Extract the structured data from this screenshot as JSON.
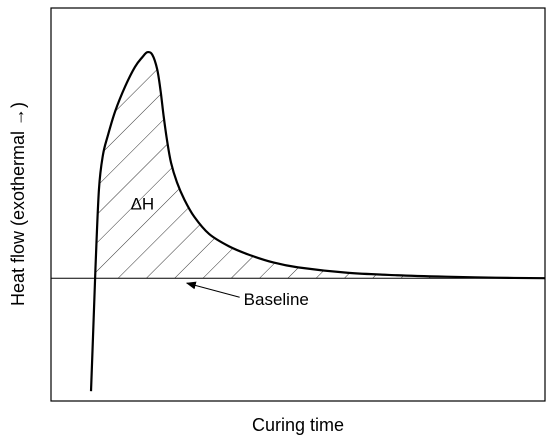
{
  "chart_data": {
    "type": "line",
    "title": "",
    "xlabel": "Curing time",
    "ylabel": "Heat flow (exothermal →)",
    "xlim": [
      0,
      100
    ],
    "ylim": [
      -25,
      55
    ],
    "grid": false,
    "legend": "none",
    "ticks": "none",
    "baseline": 0,
    "series": [
      {
        "x": [
          8.1,
          8.5,
          9.0,
          9.7,
          10.5,
          11.5,
          13,
          15,
          17,
          18.5,
          19.5,
          20.5,
          21.5,
          22.2,
          22.8,
          23.5,
          24.3,
          25.5,
          27,
          29,
          32,
          36,
          40,
          45,
          50,
          60,
          70,
          80,
          90,
          100
        ],
        "y": [
          -23.0,
          -12.0,
          2.0,
          18.0,
          25.0,
          29.0,
          34.0,
          39.0,
          43.0,
          45.0,
          46.0,
          45.5,
          42.5,
          38.0,
          33.0,
          28.0,
          23.5,
          19.5,
          16.0,
          12.5,
          9.0,
          6.5,
          4.8,
          3.2,
          2.2,
          1.1,
          0.6,
          0.3,
          0.1,
          0.0
        ]
      }
    ],
    "annotations": [
      {
        "text": "ΔH",
        "x": 18.5,
        "y": 14
      },
      {
        "text": "Baseline",
        "x": 39,
        "y": -5.5,
        "arrow_to_x": 27.5,
        "arrow_to_y": -1
      }
    ],
    "shaded_region": "area between curve and baseline, hatched"
  }
}
